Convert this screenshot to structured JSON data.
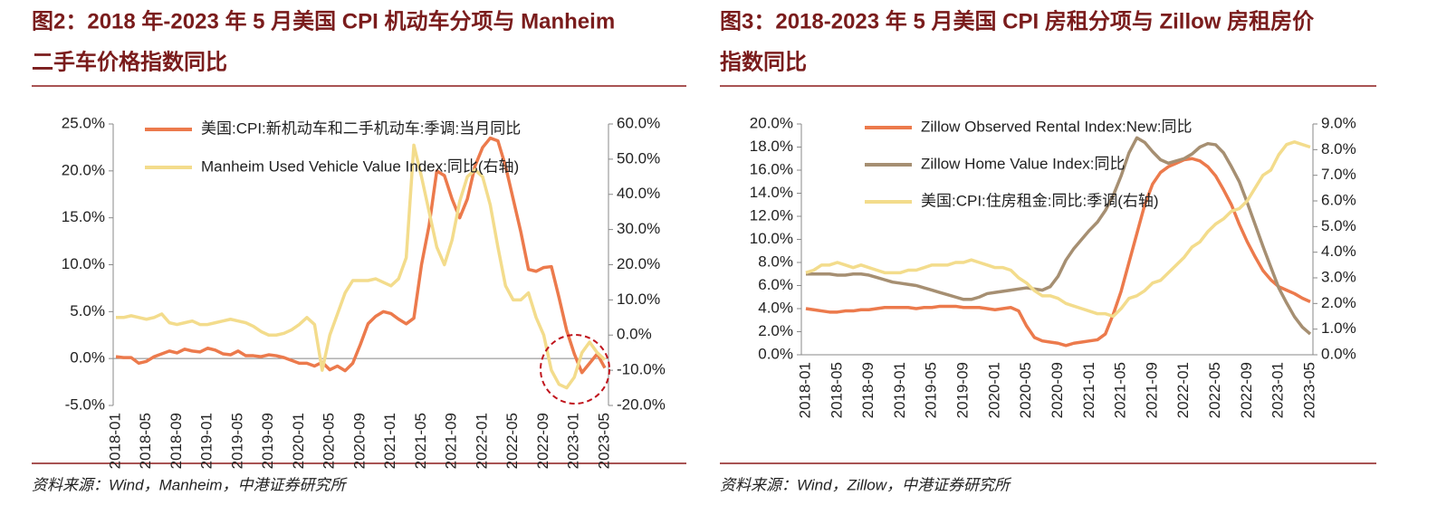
{
  "chart_data": [
    {
      "type": "line",
      "title": [
        "图2：2018 年-2023 年 5 月美国 CPI 机动车分项与 Manheim",
        "二手车价格指数同比"
      ],
      "source": "资料来源：Wind，Manheim，中港证券研究所",
      "legend": "top",
      "categories": [
        "2018-01",
        null,
        null,
        null,
        "2018-05",
        null,
        null,
        null,
        "2018-09",
        null,
        null,
        null,
        "2019-01",
        null,
        null,
        null,
        "2019-05",
        null,
        null,
        null,
        "2019-09",
        null,
        null,
        null,
        "2020-01",
        null,
        null,
        null,
        "2020-05",
        null,
        null,
        null,
        "2020-09",
        null,
        null,
        null,
        "2021-01",
        null,
        null,
        null,
        "2021-05",
        null,
        null,
        null,
        "2021-09",
        null,
        null,
        null,
        "2022-01",
        null,
        null,
        null,
        "2022-05",
        null,
        null,
        null,
        "2022-09",
        null,
        null,
        null,
        "2023-01",
        null,
        null,
        null,
        "2023-05"
      ],
      "ylim": [
        -5,
        25
      ],
      "yticks": [
        {
          "value": -5,
          "label": "-5.0%"
        },
        {
          "value": 0,
          "label": "0.0%"
        },
        {
          "value": 5,
          "label": "5.0%"
        },
        {
          "value": 10,
          "label": "10.0%"
        },
        {
          "value": 15,
          "label": "15.0%"
        },
        {
          "value": 20,
          "label": "20.0%"
        },
        {
          "value": 25,
          "label": "25.0%"
        }
      ],
      "y2lim": [
        -20,
        60
      ],
      "y2ticks": [
        {
          "value": -20,
          "label": "-20.0%"
        },
        {
          "value": -10,
          "label": "-10.0%"
        },
        {
          "value": 0,
          "label": "0.0%"
        },
        {
          "value": 10,
          "label": "10.0%"
        },
        {
          "value": 20,
          "label": "20.0%"
        },
        {
          "value": 30,
          "label": "30.0%"
        },
        {
          "value": 40,
          "label": "40.0%"
        },
        {
          "value": 50,
          "label": "50.0%"
        },
        {
          "value": 60,
          "label": "60.0%"
        }
      ],
      "series": [
        {
          "name": "美国:CPI:新机动车和二手机动车:季调:当月同比",
          "color": "#ec7a4c",
          "axis": "y",
          "values": [
            0.2,
            0.1,
            0.1,
            -0.5,
            -0.3,
            0.2,
            0.5,
            0.8,
            0.6,
            1.0,
            0.8,
            0.7,
            1.1,
            0.9,
            0.5,
            0.4,
            0.8,
            0.3,
            0.3,
            0.2,
            0.4,
            0.3,
            0.1,
            -0.2,
            -0.5,
            -0.5,
            -0.8,
            -0.4,
            -1.2,
            -0.8,
            -1.3,
            -0.5,
            1.5,
            3.7,
            4.5,
            5.0,
            4.8,
            4.2,
            3.7,
            4.3,
            10.0,
            14.2,
            20.0,
            19.5,
            17.0,
            15.0,
            17.0,
            20.5,
            22.5,
            23.5,
            23.2,
            20.5,
            17.0,
            13.5,
            9.5,
            9.3,
            9.7,
            9.8,
            6.5,
            3.0,
            0.5,
            -1.5,
            -0.5,
            0.5,
            -1.0
          ]
        },
        {
          "name": "Manheim Used Vehicle Value Index:同比(右轴)",
          "color": "#f3dc8c",
          "axis": "y2",
          "values": [
            5,
            5,
            5.5,
            5,
            4.5,
            5,
            6,
            3.5,
            3,
            3.5,
            4,
            3,
            3,
            3.5,
            4,
            4.5,
            4,
            3.5,
            2.5,
            1,
            0,
            0,
            0.5,
            1.5,
            3,
            5,
            3,
            -10,
            0,
            6,
            12,
            15.5,
            15.5,
            15.5,
            16,
            15,
            14,
            16,
            22,
            54,
            45,
            35,
            25,
            20,
            27,
            38,
            45,
            47,
            45,
            37,
            25,
            14,
            10,
            10,
            12,
            5,
            0,
            -10,
            -14,
            -15,
            -12,
            -5,
            -2,
            -5,
            -7
          ]
        }
      ]
    },
    {
      "type": "line",
      "title": [
        "图3：2018-2023 年 5 月美国 CPI 房租分项与 Zillow 房租房价",
        "指数同比"
      ],
      "source": "资料来源：Wind，Zillow，中港证券研究所",
      "legend": "top",
      "categories": [
        "2018-01",
        null,
        null,
        null,
        "2018-05",
        null,
        null,
        null,
        "2018-09",
        null,
        null,
        null,
        "2019-01",
        null,
        null,
        null,
        "2019-05",
        null,
        null,
        null,
        "2019-09",
        null,
        null,
        null,
        "2020-01",
        null,
        null,
        null,
        "2020-05",
        null,
        null,
        null,
        "2020-09",
        null,
        null,
        null,
        "2021-01",
        null,
        null,
        null,
        "2021-05",
        null,
        null,
        null,
        "2021-09",
        null,
        null,
        null,
        "2022-01",
        null,
        null,
        null,
        "2022-05",
        null,
        null,
        null,
        "2022-09",
        null,
        null,
        null,
        "2023-01",
        null,
        null,
        null,
        "2023-05"
      ],
      "ylim": [
        0,
        20
      ],
      "yticks": [
        {
          "value": 0,
          "label": "0.0%"
        },
        {
          "value": 2,
          "label": "2.0%"
        },
        {
          "value": 4,
          "label": "4.0%"
        },
        {
          "value": 6,
          "label": "6.0%"
        },
        {
          "value": 8,
          "label": "8.0%"
        },
        {
          "value": 10,
          "label": "10.0%"
        },
        {
          "value": 12,
          "label": "12.0%"
        },
        {
          "value": 14,
          "label": "14.0%"
        },
        {
          "value": 16,
          "label": "16.0%"
        },
        {
          "value": 18,
          "label": "18.0%"
        },
        {
          "value": 20,
          "label": "20.0%"
        }
      ],
      "y2lim": [
        0,
        9
      ],
      "y2ticks": [
        {
          "value": 0,
          "label": "0.0%"
        },
        {
          "value": 1,
          "label": "1.0%"
        },
        {
          "value": 2,
          "label": "2.0%"
        },
        {
          "value": 3,
          "label": "3.0%"
        },
        {
          "value": 4,
          "label": "4.0%"
        },
        {
          "value": 5,
          "label": "5.0%"
        },
        {
          "value": 6,
          "label": "6.0%"
        },
        {
          "value": 7,
          "label": "7.0%"
        },
        {
          "value": 8,
          "label": "8.0%"
        },
        {
          "value": 9,
          "label": "9.0%"
        }
      ],
      "series": [
        {
          "name": "Zillow Observed Rental Index:New:同比",
          "color": "#ec7a4c",
          "axis": "y",
          "values": [
            4.0,
            3.9,
            3.8,
            3.7,
            3.7,
            3.8,
            3.8,
            3.9,
            3.9,
            4.0,
            4.1,
            4.1,
            4.1,
            4.1,
            4.0,
            4.1,
            4.1,
            4.2,
            4.2,
            4.2,
            4.1,
            4.1,
            4.1,
            4.0,
            3.9,
            4.0,
            4.1,
            3.8,
            2.5,
            1.5,
            1.2,
            1.1,
            1.0,
            0.8,
            1.0,
            1.1,
            1.2,
            1.3,
            1.8,
            3.5,
            5.5,
            8.0,
            10.5,
            13.0,
            14.8,
            15.8,
            16.3,
            16.6,
            16.9,
            17.0,
            16.8,
            16.3,
            15.5,
            14.3,
            13.0,
            11.3,
            9.8,
            8.5,
            7.3,
            6.5,
            5.9,
            5.6,
            5.3,
            4.9,
            4.6
          ]
        },
        {
          "name": "Zillow Home Value Index:同比",
          "color": "#a68f72",
          "axis": "y",
          "values": [
            7.0,
            7.0,
            7.0,
            7.0,
            6.9,
            6.9,
            7.0,
            7.0,
            6.9,
            6.7,
            6.5,
            6.3,
            6.2,
            6.1,
            6.0,
            5.8,
            5.6,
            5.4,
            5.2,
            5.0,
            4.8,
            4.8,
            5.0,
            5.3,
            5.4,
            5.5,
            5.6,
            5.7,
            5.8,
            5.7,
            5.6,
            5.9,
            6.8,
            8.2,
            9.2,
            10.0,
            10.8,
            11.5,
            12.5,
            13.8,
            15.5,
            17.5,
            18.8,
            18.4,
            17.6,
            16.9,
            16.6,
            16.8,
            17.0,
            17.4,
            18.0,
            18.3,
            18.2,
            17.5,
            16.3,
            15.0,
            13.2,
            11.3,
            9.4,
            7.6,
            5.8,
            4.5,
            3.3,
            2.4,
            1.8
          ]
        },
        {
          "name": "美国:CPI:住房租金:同比:季调(右轴)",
          "color": "#f3dc8c",
          "axis": "y2",
          "values": [
            3.2,
            3.3,
            3.5,
            3.5,
            3.6,
            3.5,
            3.4,
            3.5,
            3.4,
            3.3,
            3.2,
            3.2,
            3.2,
            3.3,
            3.3,
            3.4,
            3.5,
            3.5,
            3.5,
            3.6,
            3.6,
            3.7,
            3.6,
            3.5,
            3.4,
            3.4,
            3.3,
            3.0,
            2.8,
            2.5,
            2.3,
            2.3,
            2.2,
            2.0,
            1.9,
            1.8,
            1.7,
            1.6,
            1.6,
            1.5,
            1.8,
            2.2,
            2.3,
            2.5,
            2.8,
            2.9,
            3.2,
            3.5,
            3.8,
            4.2,
            4.4,
            4.8,
            5.1,
            5.3,
            5.6,
            5.7,
            6.0,
            6.5,
            7.0,
            7.2,
            7.8,
            8.2,
            8.3,
            8.2,
            8.1
          ]
        }
      ]
    }
  ]
}
